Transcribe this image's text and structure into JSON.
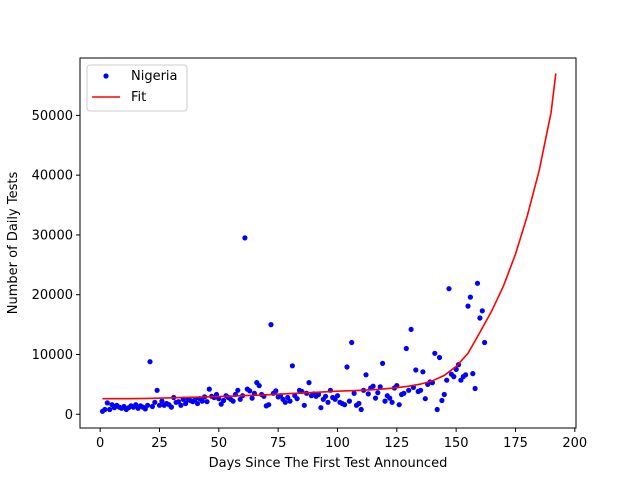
{
  "chart_data": {
    "type": "scatter",
    "title": "",
    "xlabel": "Days Since The First Test Announced",
    "ylabel": "Number of Daily Tests",
    "xlim": [
      -8.5,
      200.5
    ],
    "ylim": [
      -2300,
      59600
    ],
    "xticks": [
      0,
      25,
      50,
      75,
      100,
      125,
      150,
      175,
      200
    ],
    "yticks": [
      0,
      10000,
      20000,
      30000,
      40000,
      50000
    ],
    "grid": false,
    "legend_position": "top-left",
    "series": [
      {
        "name": "Nigeria",
        "kind": "scatter",
        "color": "#0000ff",
        "points": [
          [
            1,
            500
          ],
          [
            2,
            800
          ],
          [
            3,
            1900
          ],
          [
            4,
            800
          ],
          [
            5,
            1600
          ],
          [
            6,
            1100
          ],
          [
            7,
            1500
          ],
          [
            8,
            1200
          ],
          [
            9,
            1000
          ],
          [
            10,
            1300
          ],
          [
            11,
            800
          ],
          [
            12,
            1100
          ],
          [
            13,
            1400
          ],
          [
            14,
            1200
          ],
          [
            15,
            1600
          ],
          [
            16,
            1000
          ],
          [
            17,
            1400
          ],
          [
            18,
            1200
          ],
          [
            19,
            900
          ],
          [
            20,
            1500
          ],
          [
            21,
            8800
          ],
          [
            22,
            1300
          ],
          [
            23,
            2000
          ],
          [
            24,
            4000
          ],
          [
            25,
            1500
          ],
          [
            26,
            2200
          ],
          [
            27,
            1500
          ],
          [
            28,
            1800
          ],
          [
            29,
            1600
          ],
          [
            30,
            1200
          ],
          [
            31,
            2800
          ],
          [
            32,
            2000
          ],
          [
            33,
            2100
          ],
          [
            34,
            1500
          ],
          [
            35,
            2500
          ],
          [
            36,
            1800
          ],
          [
            37,
            2400
          ],
          [
            38,
            2300
          ],
          [
            39,
            2100
          ],
          [
            40,
            2500
          ],
          [
            41,
            1800
          ],
          [
            42,
            2600
          ],
          [
            43,
            2200
          ],
          [
            44,
            2900
          ],
          [
            45,
            2100
          ],
          [
            46,
            4200
          ],
          [
            47,
            3000
          ],
          [
            48,
            2800
          ],
          [
            49,
            3300
          ],
          [
            50,
            2600
          ],
          [
            51,
            1700
          ],
          [
            52,
            2300
          ],
          [
            53,
            3100
          ],
          [
            54,
            2800
          ],
          [
            55,
            2500
          ],
          [
            56,
            2200
          ],
          [
            57,
            3300
          ],
          [
            58,
            4000
          ],
          [
            59,
            2500
          ],
          [
            60,
            3100
          ],
          [
            61,
            29500
          ],
          [
            62,
            4200
          ],
          [
            63,
            3900
          ],
          [
            64,
            2700
          ],
          [
            65,
            3500
          ],
          [
            66,
            5300
          ],
          [
            67,
            4800
          ],
          [
            68,
            3300
          ],
          [
            69,
            3000
          ],
          [
            70,
            1400
          ],
          [
            71,
            1600
          ],
          [
            72,
            15000
          ],
          [
            73,
            3500
          ],
          [
            74,
            3900
          ],
          [
            75,
            2900
          ],
          [
            76,
            3100
          ],
          [
            77,
            2500
          ],
          [
            78,
            2000
          ],
          [
            79,
            2800
          ],
          [
            80,
            2200
          ],
          [
            81,
            8100
          ],
          [
            82,
            3100
          ],
          [
            83,
            2600
          ],
          [
            84,
            4000
          ],
          [
            85,
            3800
          ],
          [
            86,
            1500
          ],
          [
            87,
            3500
          ],
          [
            88,
            5300
          ],
          [
            89,
            3100
          ],
          [
            90,
            3400
          ],
          [
            91,
            3000
          ],
          [
            92,
            3300
          ],
          [
            93,
            1100
          ],
          [
            94,
            2500
          ],
          [
            95,
            3000
          ],
          [
            96,
            2000
          ],
          [
            97,
            4000
          ],
          [
            98,
            2800
          ],
          [
            99,
            2500
          ],
          [
            100,
            3100
          ],
          [
            101,
            2000
          ],
          [
            102,
            1800
          ],
          [
            103,
            1600
          ],
          [
            104,
            7900
          ],
          [
            105,
            2200
          ],
          [
            106,
            12000
          ],
          [
            107,
            3500
          ],
          [
            108,
            1500
          ],
          [
            109,
            1800
          ],
          [
            110,
            800
          ],
          [
            111,
            4000
          ],
          [
            112,
            6600
          ],
          [
            113,
            3400
          ],
          [
            114,
            4400
          ],
          [
            115,
            4700
          ],
          [
            116,
            2700
          ],
          [
            117,
            3600
          ],
          [
            118,
            4600
          ],
          [
            119,
            8500
          ],
          [
            120,
            2200
          ],
          [
            121,
            3100
          ],
          [
            122,
            2700
          ],
          [
            123,
            2000
          ],
          [
            124,
            4400
          ],
          [
            125,
            4800
          ],
          [
            126,
            1600
          ],
          [
            127,
            3300
          ],
          [
            128,
            3500
          ],
          [
            129,
            11000
          ],
          [
            130,
            4000
          ],
          [
            131,
            14200
          ],
          [
            132,
            4500
          ],
          [
            133,
            7400
          ],
          [
            134,
            3800
          ],
          [
            135,
            4000
          ],
          [
            136,
            7100
          ],
          [
            137,
            2600
          ],
          [
            138,
            5000
          ],
          [
            139,
            5400
          ],
          [
            140,
            5300
          ],
          [
            141,
            10200
          ],
          [
            142,
            800
          ],
          [
            143,
            9500
          ],
          [
            144,
            2300
          ],
          [
            145,
            3300
          ],
          [
            146,
            5700
          ],
          [
            147,
            21000
          ],
          [
            148,
            6700
          ],
          [
            149,
            6300
          ],
          [
            150,
            7500
          ],
          [
            151,
            8300
          ],
          [
            152,
            5700
          ],
          [
            153,
            6300
          ],
          [
            154,
            6600
          ],
          [
            155,
            18100
          ],
          [
            156,
            19600
          ],
          [
            157,
            6800
          ],
          [
            158,
            4300
          ],
          [
            159,
            21900
          ],
          [
            160,
            16100
          ],
          [
            161,
            17300
          ],
          [
            162,
            12000
          ]
        ]
      },
      {
        "name": "Fit",
        "kind": "line",
        "color": "#ff0000",
        "points": [
          [
            1,
            2600
          ],
          [
            10,
            2600
          ],
          [
            20,
            2650
          ],
          [
            30,
            2750
          ],
          [
            40,
            2850
          ],
          [
            50,
            2950
          ],
          [
            60,
            3100
          ],
          [
            70,
            3250
          ],
          [
            80,
            3450
          ],
          [
            90,
            3650
          ],
          [
            100,
            3850
          ],
          [
            110,
            4000
          ],
          [
            115,
            4100
          ],
          [
            120,
            4250
          ],
          [
            125,
            4450
          ],
          [
            130,
            4700
          ],
          [
            135,
            5050
          ],
          [
            140,
            5600
          ],
          [
            145,
            6500
          ],
          [
            150,
            8000
          ],
          [
            155,
            10200
          ],
          [
            160,
            13700
          ],
          [
            165,
            17300
          ],
          [
            170,
            21500
          ],
          [
            175,
            26800
          ],
          [
            180,
            33200
          ],
          [
            185,
            40800
          ],
          [
            190,
            50500
          ],
          [
            192,
            57000
          ]
        ]
      }
    ]
  }
}
